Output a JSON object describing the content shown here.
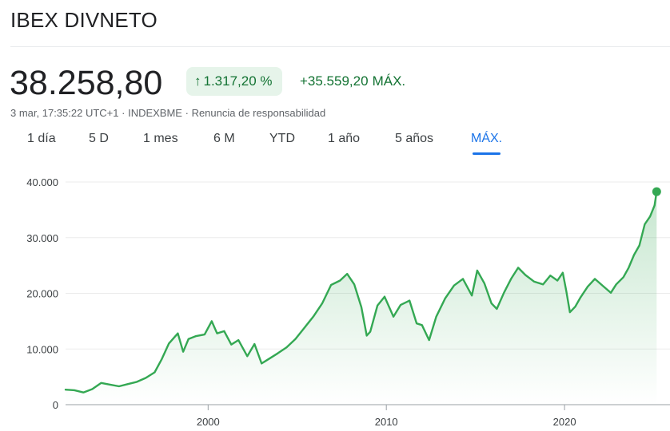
{
  "header": {
    "title": "IBEX DIVNETO"
  },
  "quote": {
    "price": "38.258,80",
    "change_pct": "1.317,20 %",
    "change_abs": "+35.559,20",
    "change_period": "MÁX.",
    "timestamp": "3 mar, 17:35:22 UTC+1",
    "exchange": "INDEXBME",
    "disclaimer": "Renuncia de responsabilidad"
  },
  "tabs": [
    {
      "label": "1 día"
    },
    {
      "label": "5 D"
    },
    {
      "label": "1 mes"
    },
    {
      "label": "6 M"
    },
    {
      "label": "YTD"
    },
    {
      "label": "1 año"
    },
    {
      "label": "5 años"
    },
    {
      "label": "MÁX.",
      "active": true
    }
  ],
  "colors": {
    "up": "#34a853",
    "up_text": "#137333",
    "chip_bg": "#e6f4ea",
    "accent": "#1a73e8"
  },
  "chart_data": {
    "type": "area",
    "y_ticks": [
      "40.000",
      "30.000",
      "20.000",
      "10.000",
      "0"
    ],
    "y_tick_values": [
      40000,
      30000,
      20000,
      10000,
      0
    ],
    "x_ticks": [
      "2000",
      "2010",
      "2020"
    ],
    "x_tick_values": [
      2000,
      2010,
      2020
    ],
    "xlim": [
      1992,
      2025.2
    ],
    "ylim": [
      0,
      40000
    ],
    "series": [
      {
        "x": [
          1992.0,
          1992.5,
          1993.0,
          1993.5,
          1994.0,
          1994.5,
          1995.0,
          1995.5,
          1996.0,
          1996.5,
          1997.0,
          1997.4,
          1997.8,
          1998.3,
          1998.6,
          1998.9,
          1999.3,
          1999.8,
          2000.2,
          2000.5,
          2000.9,
          2001.3,
          2001.7,
          2002.2,
          2002.6,
          2003.0,
          2003.4,
          2003.9,
          2004.4,
          2004.9,
          2005.4,
          2005.9,
          2006.4,
          2006.9,
          2007.4,
          2007.8,
          2008.2,
          2008.6,
          2008.9,
          2009.1,
          2009.5,
          2009.9,
          2010.4,
          2010.8,
          2011.3,
          2011.7,
          2012.0,
          2012.4,
          2012.8,
          2013.3,
          2013.8,
          2014.3,
          2014.8,
          2015.1,
          2015.5,
          2015.9,
          2016.2,
          2016.6,
          2017.0,
          2017.4,
          2017.8,
          2018.3,
          2018.8,
          2019.2,
          2019.6,
          2019.9,
          2020.1,
          2020.3,
          2020.6,
          2020.9,
          2021.3,
          2021.7,
          2022.2,
          2022.6,
          2022.9,
          2023.3,
          2023.6,
          2023.9,
          2024.2,
          2024.5,
          2024.8,
          2025.05,
          2025.17
        ],
        "values": [
          2700,
          2600,
          2200,
          2800,
          3900,
          3600,
          3300,
          3700,
          4100,
          4800,
          5800,
          8200,
          11000,
          12800,
          9500,
          11800,
          12300,
          12600,
          15000,
          12800,
          13200,
          10800,
          11600,
          8700,
          10900,
          7400,
          8200,
          9200,
          10300,
          11800,
          13800,
          15800,
          18200,
          21500,
          22300,
          23500,
          21600,
          17500,
          12400,
          13100,
          17800,
          19400,
          15800,
          17900,
          18700,
          14600,
          14300,
          11600,
          15800,
          19100,
          21400,
          22600,
          19600,
          24100,
          21800,
          18200,
          17200,
          20100,
          22600,
          24600,
          23300,
          22100,
          21600,
          23200,
          22300,
          23700,
          20400,
          16600,
          17600,
          19300,
          21200,
          22600,
          21200,
          20100,
          21600,
          22900,
          24600,
          26900,
          28600,
          32400,
          33800,
          35800,
          38258.8
        ]
      }
    ]
  }
}
